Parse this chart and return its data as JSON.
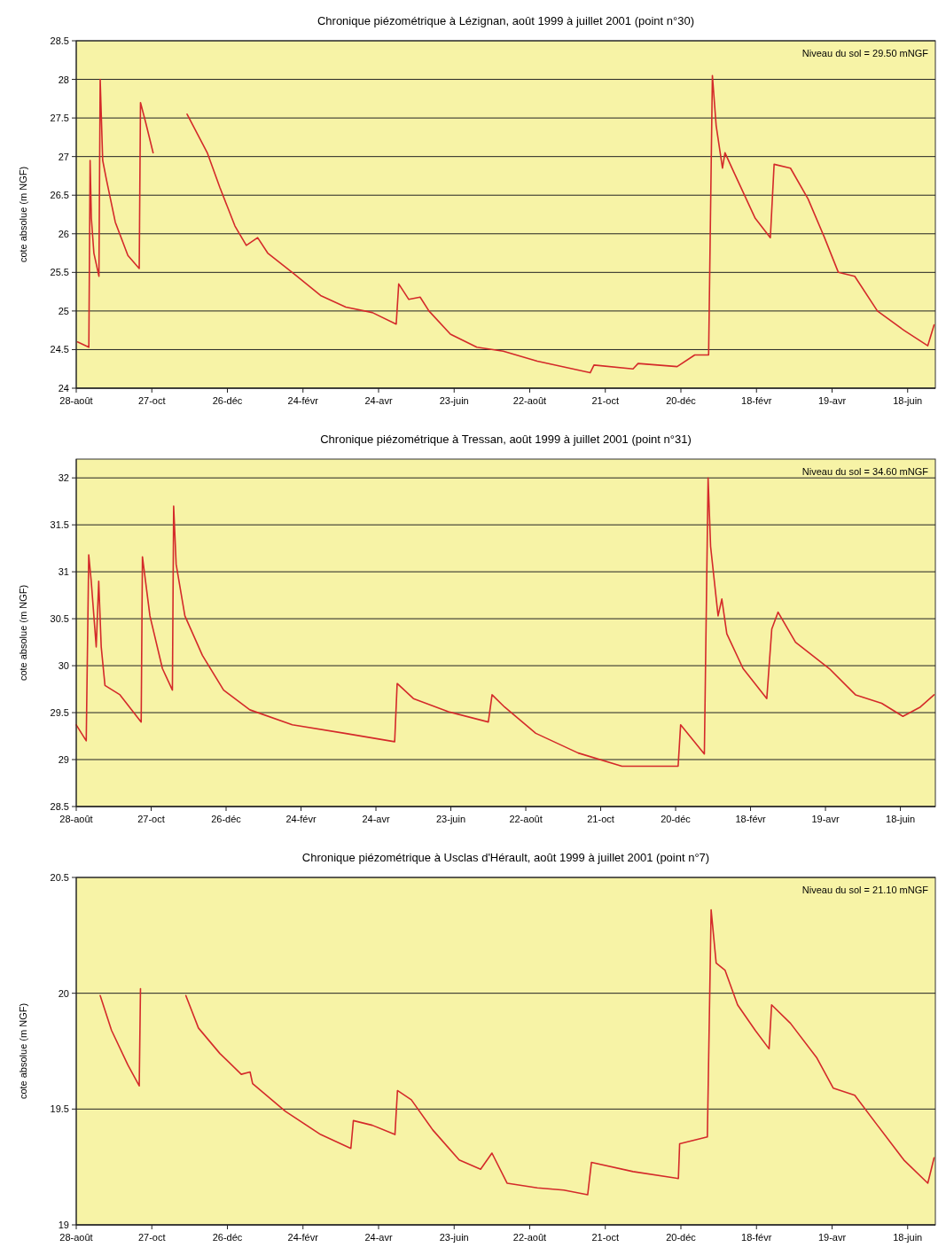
{
  "chart_data": [
    {
      "type": "line",
      "title": "Chronique piézométrique à Lézignan, août 1999 à juillet 2001 (point n°30)",
      "ylabel": "cote absolue (m NGF)",
      "annotations": [
        "Niveau du sol = 29.50 mNGF"
      ],
      "grid": "y",
      "xlim": [
        "1999-08-28",
        "2001-07-10"
      ],
      "xticks": [
        {
          "value": "1999-08-28",
          "label": "28-août"
        },
        {
          "value": "1999-10-27",
          "label": "27-oct"
        },
        {
          "value": "1999-12-26",
          "label": "26-déc"
        },
        {
          "value": "2000-02-24",
          "label": "24-févr"
        },
        {
          "value": "2000-04-24",
          "label": "24-avr"
        },
        {
          "value": "2000-06-23",
          "label": "23-juin"
        },
        {
          "value": "2000-08-22",
          "label": "22-août"
        },
        {
          "value": "2000-10-21",
          "label": "21-oct"
        },
        {
          "value": "2000-12-20",
          "label": "20-déc"
        },
        {
          "value": "2001-02-18",
          "label": "18-févr"
        },
        {
          "value": "2001-04-19",
          "label": "19-avr"
        },
        {
          "value": "2001-06-18",
          "label": "18-juin"
        }
      ],
      "ylim": [
        24,
        28.5
      ],
      "yticks": [
        24,
        24.5,
        25,
        25.5,
        26,
        26.5,
        27,
        27.5,
        28,
        28.5
      ],
      "series": [
        {
          "color": "#d42a2a",
          "x": [
            "1999-08-29",
            "1999-09-07",
            "1999-09-08",
            "1999-09-09",
            "1999-09-11",
            "1999-09-15",
            "1999-09-16",
            "1999-09-18",
            "1999-09-21",
            "1999-09-28",
            "1999-10-08",
            "1999-10-17",
            "1999-10-18",
            "1999-10-22",
            "1999-10-28",
            "1999-11-10",
            "1999-11-24",
            "1999-12-10",
            "1999-12-20",
            "2000-01-01",
            "2000-01-10",
            "2000-01-19",
            "2000-01-27",
            "2000-02-17",
            "2000-03-09",
            "2000-03-29",
            "2000-04-19",
            "2000-05-08",
            "2000-05-10",
            "2000-05-18",
            "2000-05-27",
            "2000-06-03",
            "2000-06-20",
            "2000-07-11",
            "2000-08-01",
            "2000-08-28",
            "2000-10-09",
            "2000-10-12",
            "2000-11-12",
            "2000-11-16",
            "2000-12-17",
            "2000-12-31",
            "2001-01-11",
            "2001-01-14",
            "2001-01-17",
            "2001-01-22",
            "2001-01-24",
            "2001-01-31",
            "2001-02-17",
            "2001-03-01",
            "2001-03-04",
            "2001-03-17",
            "2001-03-31",
            "2001-04-13",
            "2001-04-24",
            "2001-05-07",
            "2001-05-25",
            "2001-06-15",
            "2001-07-04",
            "2001-07-09"
          ],
          "values": [
            24.6,
            24.53,
            26.95,
            26.2,
            25.75,
            25.45,
            28.0,
            26.95,
            26.7,
            26.15,
            25.72,
            25.55,
            27.7,
            27.45,
            27.05,
            null,
            27.55,
            27.05,
            26.6,
            26.1,
            25.85,
            25.95,
            25.75,
            25.48,
            25.2,
            25.05,
            24.98,
            24.83,
            25.35,
            25.15,
            25.18,
            25.0,
            24.7,
            24.53,
            24.48,
            24.35,
            24.2,
            24.3,
            24.25,
            24.32,
            24.28,
            24.43,
            24.43,
            28.05,
            27.4,
            26.85,
            27.05,
            26.8,
            26.2,
            25.95,
            26.9,
            26.85,
            26.45,
            25.95,
            25.5,
            25.45,
            25.0,
            24.75,
            24.55,
            24.82
          ]
        }
      ]
    },
    {
      "type": "line",
      "title": "Chronique piézométrique à Tressan, août 1999 à juillet 2001 (point n°31)",
      "ylabel": "cote absolue (m NGF)",
      "annotations": [
        "Niveau du sol = 34.60 mNGF"
      ],
      "grid": "y",
      "xlim": [
        "1999-08-28",
        "2001-07-16"
      ],
      "xticks": [
        {
          "value": "1999-08-28",
          "label": "28-août"
        },
        {
          "value": "1999-10-27",
          "label": "27-oct"
        },
        {
          "value": "1999-12-26",
          "label": "26-déc"
        },
        {
          "value": "2000-02-24",
          "label": "24-févr"
        },
        {
          "value": "2000-04-24",
          "label": "24-avr"
        },
        {
          "value": "2000-06-23",
          "label": "23-juin"
        },
        {
          "value": "2000-08-22",
          "label": "22-août"
        },
        {
          "value": "2000-10-21",
          "label": "21-oct"
        },
        {
          "value": "2000-12-20",
          "label": "20-déc"
        },
        {
          "value": "2001-02-18",
          "label": "18-févr"
        },
        {
          "value": "2001-04-19",
          "label": "19-avr"
        },
        {
          "value": "2001-06-18",
          "label": "18-juin"
        }
      ],
      "ylim": [
        28.5,
        32.2
      ],
      "yticks": [
        28.5,
        29,
        29.5,
        30,
        30.5,
        31,
        31.5,
        32
      ],
      "series": [
        {
          "color": "#d42a2a",
          "x": [
            "1999-08-28",
            "1999-09-05",
            "1999-09-07",
            "1999-09-09",
            "1999-09-13",
            "1999-09-15",
            "1999-09-17",
            "1999-09-20",
            "1999-10-02",
            "1999-10-19",
            "1999-10-20",
            "1999-10-26",
            "1999-11-05",
            "1999-11-13",
            "1999-11-14",
            "1999-11-16",
            "1999-11-23",
            "1999-12-07",
            "1999-12-24",
            "2000-01-14",
            "2000-02-17",
            "2000-03-30",
            "2000-05-09",
            "2000-05-11",
            "2000-05-24",
            "2000-06-21",
            "2000-07-23",
            "2000-07-26",
            "2000-08-05",
            "2000-08-30",
            "2000-10-03",
            "2000-11-07",
            "2000-12-22",
            "2000-12-24",
            "2001-01-12",
            "2001-01-15",
            "2001-01-17",
            "2001-01-23",
            "2001-01-26",
            "2001-01-30",
            "2001-02-12",
            "2001-03-03",
            "2001-03-07",
            "2001-03-12",
            "2001-03-26",
            "2001-04-22",
            "2001-05-13",
            "2001-06-03",
            "2001-06-20",
            "2001-07-04",
            "2001-07-15"
          ],
          "values": [
            29.37,
            29.2,
            31.18,
            30.9,
            30.2,
            30.9,
            30.2,
            29.79,
            29.69,
            29.4,
            31.16,
            30.53,
            29.97,
            29.74,
            31.7,
            31.08,
            30.53,
            30.11,
            29.74,
            29.53,
            29.37,
            29.28,
            29.19,
            29.81,
            29.65,
            29.51,
            29.4,
            29.69,
            29.56,
            29.28,
            29.07,
            28.93,
            28.93,
            29.37,
            29.06,
            32.0,
            31.27,
            30.53,
            30.71,
            30.34,
            29.97,
            29.65,
            30.39,
            30.57,
            30.25,
            29.97,
            29.69,
            29.6,
            29.46,
            29.56,
            29.69
          ]
        }
      ]
    },
    {
      "type": "line",
      "title": "Chronique piézométrique à Usclas d'Hérault, août 1999 à juillet 2001 (point n°7)",
      "ylabel": "cote absolue (m NGF)",
      "annotations": [
        "Niveau du sol = 21.10 mNGF"
      ],
      "grid": "y",
      "xlim": [
        "1999-08-28",
        "2001-07-10"
      ],
      "xticks": [
        {
          "value": "1999-08-28",
          "label": "28-août"
        },
        {
          "value": "1999-10-27",
          "label": "27-oct"
        },
        {
          "value": "1999-12-26",
          "label": "26-déc"
        },
        {
          "value": "2000-02-24",
          "label": "24-févr"
        },
        {
          "value": "2000-04-24",
          "label": "24-avr"
        },
        {
          "value": "2000-06-23",
          "label": "23-juin"
        },
        {
          "value": "2000-08-22",
          "label": "22-août"
        },
        {
          "value": "2000-10-21",
          "label": "21-oct"
        },
        {
          "value": "2000-12-20",
          "label": "20-déc"
        },
        {
          "value": "2001-02-18",
          "label": "18-févr"
        },
        {
          "value": "2001-04-19",
          "label": "19-avr"
        },
        {
          "value": "2001-06-18",
          "label": "18-juin"
        }
      ],
      "ylim": [
        19,
        20.5
      ],
      "yticks": [
        19,
        19.5,
        20,
        20.5
      ],
      "series": [
        {
          "color": "#d42a2a",
          "x": [
            "1999-09-16",
            "1999-09-25",
            "1999-10-08",
            "1999-10-17",
            "1999-10-18",
            "1999-11-05",
            "1999-11-23",
            "1999-12-03",
            "1999-12-20",
            "2000-01-06",
            "2000-01-13",
            "2000-01-15",
            "2000-02-10",
            "2000-03-09",
            "2000-04-02",
            "2000-04-04",
            "2000-04-19",
            "2000-05-07",
            "2000-05-09",
            "2000-05-20",
            "2000-06-06",
            "2000-06-27",
            "2000-07-14",
            "2000-07-23",
            "2000-08-04",
            "2000-08-28",
            "2000-09-18",
            "2000-10-07",
            "2000-10-10",
            "2000-11-12",
            "2000-12-18",
            "2000-12-19",
            "2001-01-10",
            "2001-01-13",
            "2001-01-17",
            "2001-01-24",
            "2001-02-03",
            "2001-02-17",
            "2001-02-28",
            "2001-03-02",
            "2001-03-17",
            "2001-04-07",
            "2001-04-20",
            "2001-05-07",
            "2001-05-25",
            "2001-06-15",
            "2001-07-04",
            "2001-07-09"
          ],
          "values": [
            19.99,
            19.84,
            19.69,
            19.6,
            20.02,
            null,
            19.99,
            19.85,
            19.74,
            19.65,
            19.66,
            19.61,
            19.49,
            19.39,
            19.33,
            19.45,
            19.43,
            19.39,
            19.58,
            19.54,
            19.41,
            19.28,
            19.24,
            19.31,
            19.18,
            19.16,
            19.15,
            19.13,
            19.27,
            19.23,
            19.2,
            19.35,
            19.38,
            20.36,
            20.13,
            20.1,
            19.95,
            19.84,
            19.76,
            19.95,
            19.87,
            19.72,
            19.59,
            19.56,
            19.43,
            19.28,
            19.18,
            19.29
          ]
        }
      ]
    }
  ]
}
